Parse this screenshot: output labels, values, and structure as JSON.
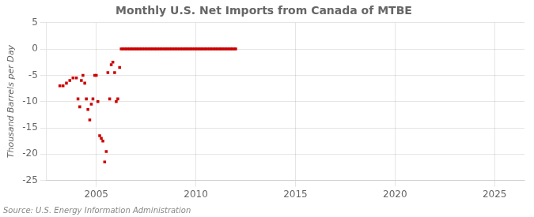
{
  "chart_data": {
    "type": "scatter",
    "title": "Monthly U.S. Net Imports from Canada of MTBE",
    "ylabel": "Thousand Barrels per Day",
    "annotations": [
      "Source: U.S. Energy Information Administration"
    ],
    "x": [
      2003.17,
      2003.33,
      2003.5,
      2003.67,
      2003.83,
      2004.0,
      2004.08,
      2004.17,
      2004.25,
      2004.33,
      2004.42,
      2004.5,
      2004.58,
      2004.67,
      2004.75,
      2004.83,
      2004.92,
      2005.0,
      2005.08,
      2005.17,
      2005.25,
      2005.33,
      2005.42,
      2005.5,
      2005.58,
      2005.67,
      2005.75,
      2005.83,
      2005.92,
      2006.0,
      2006.08,
      2006.17,
      2006.25,
      2006.33,
      2006.42,
      2006.5,
      2006.58,
      2006.67,
      2006.75,
      2006.83,
      2006.92,
      2007.0,
      2007.08,
      2007.17,
      2007.25,
      2007.33,
      2007.42,
      2007.5,
      2007.58,
      2007.67,
      2007.75,
      2007.83,
      2007.92,
      2008.0,
      2008.08,
      2008.17,
      2008.25,
      2008.33,
      2008.42,
      2008.5,
      2008.58,
      2008.67,
      2008.75,
      2008.83,
      2008.92,
      2009.0,
      2009.08,
      2009.17,
      2009.25,
      2009.33,
      2009.42,
      2009.5,
      2009.58,
      2009.67,
      2009.75,
      2009.83,
      2009.92,
      2010.0,
      2010.08,
      2010.17,
      2010.25,
      2010.33,
      2010.42,
      2010.5,
      2010.58,
      2010.67,
      2010.75,
      2010.83,
      2010.92,
      2011.0,
      2011.08,
      2011.17,
      2011.25,
      2011.33,
      2011.42,
      2011.5,
      2011.58,
      2011.67,
      2011.75,
      2011.83,
      2011.92,
      2012.0
    ],
    "values": [
      -7.0,
      -7.0,
      -6.5,
      -6.0,
      -5.5,
      -5.5,
      -9.5,
      -11.0,
      -6.0,
      -5.0,
      -6.5,
      -9.5,
      -11.5,
      -13.5,
      -10.5,
      -9.5,
      -5.0,
      -5.0,
      -10.0,
      -16.5,
      -17.0,
      -17.5,
      -21.5,
      -19.5,
      -4.5,
      -9.5,
      -3.0,
      -2.5,
      -4.5,
      -10.0,
      -9.5,
      -3.5,
      0.0,
      0.0,
      0.0,
      0.0,
      0.0,
      0.0,
      0.0,
      0.0,
      0.0,
      0.0,
      0.0,
      0.0,
      0.0,
      0.0,
      0.0,
      0.0,
      0.0,
      0.0,
      0.0,
      0.0,
      0.0,
      0.0,
      0.0,
      0.0,
      0.0,
      0.0,
      0.0,
      0.0,
      0.0,
      0.0,
      0.0,
      0.0,
      0.0,
      0.0,
      0.0,
      0.0,
      0.0,
      0.0,
      0.0,
      0.0,
      0.0,
      0.0,
      0.0,
      0.0,
      0.0,
      0.0,
      0.0,
      0.0,
      0.0,
      0.0,
      0.0,
      0.0,
      0.0,
      0.0,
      0.0,
      0.0,
      0.0,
      0.0,
      0.0,
      0.0,
      0.0,
      0.0,
      0.0,
      0.0,
      0.0,
      0.0,
      0.0,
      0.0,
      0.0,
      0.0
    ],
    "color": "#cc0000",
    "marker": "square",
    "xlim": [
      2002.5,
      2026.5
    ],
    "ylim": [
      -25,
      5
    ],
    "xticks": [
      2005,
      2010,
      2015,
      2020,
      2025
    ],
    "yticks": [
      5,
      0,
      -5,
      -10,
      -15,
      -20,
      -25
    ],
    "grid": true
  }
}
